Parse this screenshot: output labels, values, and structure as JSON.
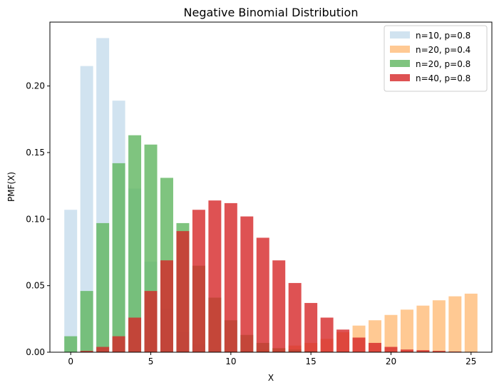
{
  "chart_data": {
    "type": "bar",
    "title": "Negative Binomial Distribution",
    "xlabel": "X",
    "ylabel": "PMF(X)",
    "xlim": [
      -1.3,
      26.3
    ],
    "ylim": [
      0,
      0.248
    ],
    "xticks": [
      0,
      5,
      10,
      15,
      20,
      25
    ],
    "yticks": [
      0.0,
      0.05,
      0.1,
      0.15,
      0.2
    ],
    "ytick_labels": [
      "0.00",
      "0.05",
      "0.10",
      "0.15",
      "0.20"
    ],
    "x": [
      0,
      1,
      2,
      3,
      4,
      5,
      6,
      7,
      8,
      9,
      10,
      11,
      12,
      13,
      14,
      15,
      16,
      17,
      18,
      19,
      20,
      21,
      22,
      23,
      24,
      25
    ],
    "grid": false,
    "legend_position": "top-right",
    "series": [
      {
        "name": "n=10, p=0.8",
        "color": "#c6dcec",
        "opacity": 0.8,
        "values": [
          0.107,
          0.215,
          0.236,
          0.189,
          0.123,
          0.068,
          0.033,
          0.015,
          0.006,
          0.002,
          0.001,
          0,
          0,
          0,
          0,
          0,
          0,
          0,
          0,
          0,
          0,
          0,
          0,
          0,
          0,
          0
        ]
      },
      {
        "name": "n=20, p=0.4",
        "color": "#ffbb78",
        "opacity": 0.8,
        "values": [
          0.0,
          0.0,
          0.0,
          0.0,
          0.0,
          0.0,
          0.0,
          0.0,
          0.0,
          0.0,
          0.0,
          0.001,
          0.002,
          0.003,
          0.005,
          0.007,
          0.01,
          0.015,
          0.02,
          0.024,
          0.028,
          0.032,
          0.035,
          0.039,
          0.042,
          0.044
        ]
      },
      {
        "name": "n=20, p=0.8",
        "color": "#5fb55f",
        "opacity": 0.8,
        "values": [
          0.012,
          0.046,
          0.097,
          0.142,
          0.163,
          0.156,
          0.131,
          0.097,
          0.065,
          0.041,
          0.024,
          0.013,
          0.007,
          0.003,
          0.002,
          0.001,
          0,
          0,
          0,
          0,
          0,
          0,
          0,
          0,
          0,
          0
        ]
      },
      {
        "name": "n=40, p=0.8",
        "color": "#d62728",
        "opacity": 0.8,
        "values": [
          0.0001,
          0.001,
          0.004,
          0.012,
          0.026,
          0.046,
          0.069,
          0.091,
          0.107,
          0.114,
          0.112,
          0.102,
          0.086,
          0.069,
          0.052,
          0.037,
          0.026,
          0.017,
          0.011,
          0.007,
          0.004,
          0.002,
          0.0015,
          0.001,
          0.0005,
          0.0003
        ]
      }
    ]
  }
}
